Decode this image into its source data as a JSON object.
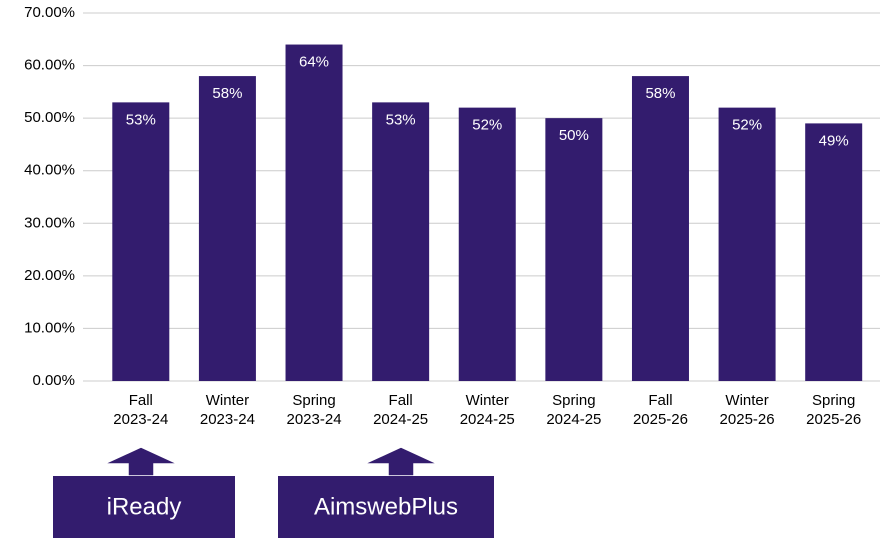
{
  "chart_data": {
    "type": "bar",
    "categories": [
      [
        "Fall",
        "2023-24"
      ],
      [
        "Winter",
        "2023-24"
      ],
      [
        "Spring",
        "2023-24"
      ],
      [
        "Fall",
        "2024-25"
      ],
      [
        "Winter",
        "2024-25"
      ],
      [
        "Spring",
        "2024-25"
      ],
      [
        "Fall",
        "2025-26"
      ],
      [
        "Winter",
        "2025-26"
      ],
      [
        "Spring",
        "2025-26"
      ]
    ],
    "values": [
      53,
      58,
      64,
      53,
      52,
      50,
      58,
      52,
      49
    ],
    "value_labels": [
      "53%",
      "58%",
      "64%",
      "53%",
      "52%",
      "50%",
      "58%",
      "52%",
      "49%"
    ],
    "color": "#331c6e",
    "ylim": [
      0,
      70
    ],
    "yticks": [
      {
        "value": 0,
        "label": "0.00%"
      },
      {
        "value": 10,
        "label": "10.00%"
      },
      {
        "value": 20,
        "label": "20.00%"
      },
      {
        "value": 30,
        "label": "30.00%"
      },
      {
        "value": 40,
        "label": "40.00%"
      },
      {
        "value": 50,
        "label": "50.00%"
      },
      {
        "value": 60,
        "label": "60.00%"
      },
      {
        "value": 70,
        "label": "70.00%"
      }
    ],
    "grid": true,
    "annotations": [
      "iReady",
      "AimswebPlus"
    ]
  }
}
